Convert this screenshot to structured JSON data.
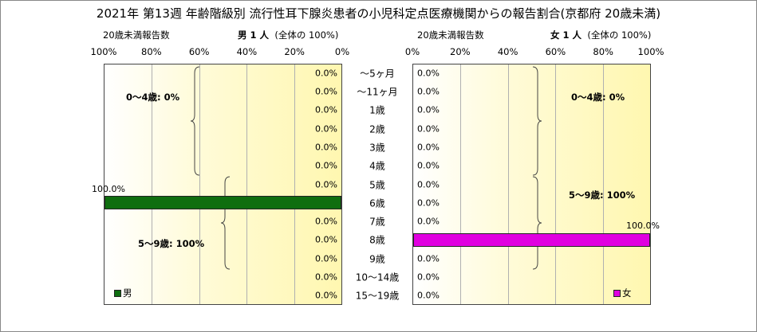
{
  "title": "2021年 第13週 年齢階級別 流行性耳下腺炎患者の小児科定点医療機関からの報告割合(京都府 20歳未満)",
  "left_panel": {
    "subtitle_left": "20歳未満報告数",
    "subtitle_bold": "男  1 人",
    "subtitle_right": "(全体の  100%)",
    "ticks": [
      "100%",
      "80%",
      "60%",
      "40%",
      "20%",
      "0%"
    ],
    "legend": "男",
    "bracket1": "0～4歳: 0%",
    "bracket2": "5～9歳: 100%"
  },
  "right_panel": {
    "subtitle_left": "20歳未満報告数",
    "subtitle_bold": "女  1 人",
    "subtitle_right": "(全体の  100%)",
    "ticks": [
      "0%",
      "20%",
      "40%",
      "60%",
      "80%",
      "100%"
    ],
    "legend": "女",
    "bracket1": "0～4歳: 0%",
    "bracket2": "5～9歳: 100%"
  },
  "colors": {
    "male": "#0f6e0f",
    "female": "#e000e0",
    "plot_bg": "#fff7b0"
  },
  "chart_data": {
    "type": "bar",
    "orientation": "horizontal",
    "categories": [
      "～5ヶ月",
      "～11ヶ月",
      "1歳",
      "2歳",
      "3歳",
      "4歳",
      "5歳",
      "6歳",
      "7歳",
      "8歳",
      "9歳",
      "10～14歳",
      "15～19歳"
    ],
    "series": [
      {
        "name": "男",
        "values": [
          0.0,
          0.0,
          0.0,
          0.0,
          0.0,
          0.0,
          0.0,
          100.0,
          0.0,
          0.0,
          0.0,
          0.0,
          0.0
        ],
        "labels": [
          "0.0%",
          "0.0%",
          "0.0%",
          "0.0%",
          "0.0%",
          "0.0%",
          "0.0%",
          "100.0%",
          "0.0%",
          "0.0%",
          "0.0%",
          "0.0%",
          "0.0%"
        ]
      },
      {
        "name": "女",
        "values": [
          0.0,
          0.0,
          0.0,
          0.0,
          0.0,
          0.0,
          0.0,
          0.0,
          0.0,
          100.0,
          0.0,
          0.0,
          0.0
        ],
        "labels": [
          "0.0%",
          "0.0%",
          "0.0%",
          "0.0%",
          "0.0%",
          "0.0%",
          "0.0%",
          "0.0%",
          "0.0%",
          "100.0%",
          "0.0%",
          "0.0%",
          "0.0%"
        ]
      }
    ],
    "xlim": [
      0,
      100
    ]
  }
}
